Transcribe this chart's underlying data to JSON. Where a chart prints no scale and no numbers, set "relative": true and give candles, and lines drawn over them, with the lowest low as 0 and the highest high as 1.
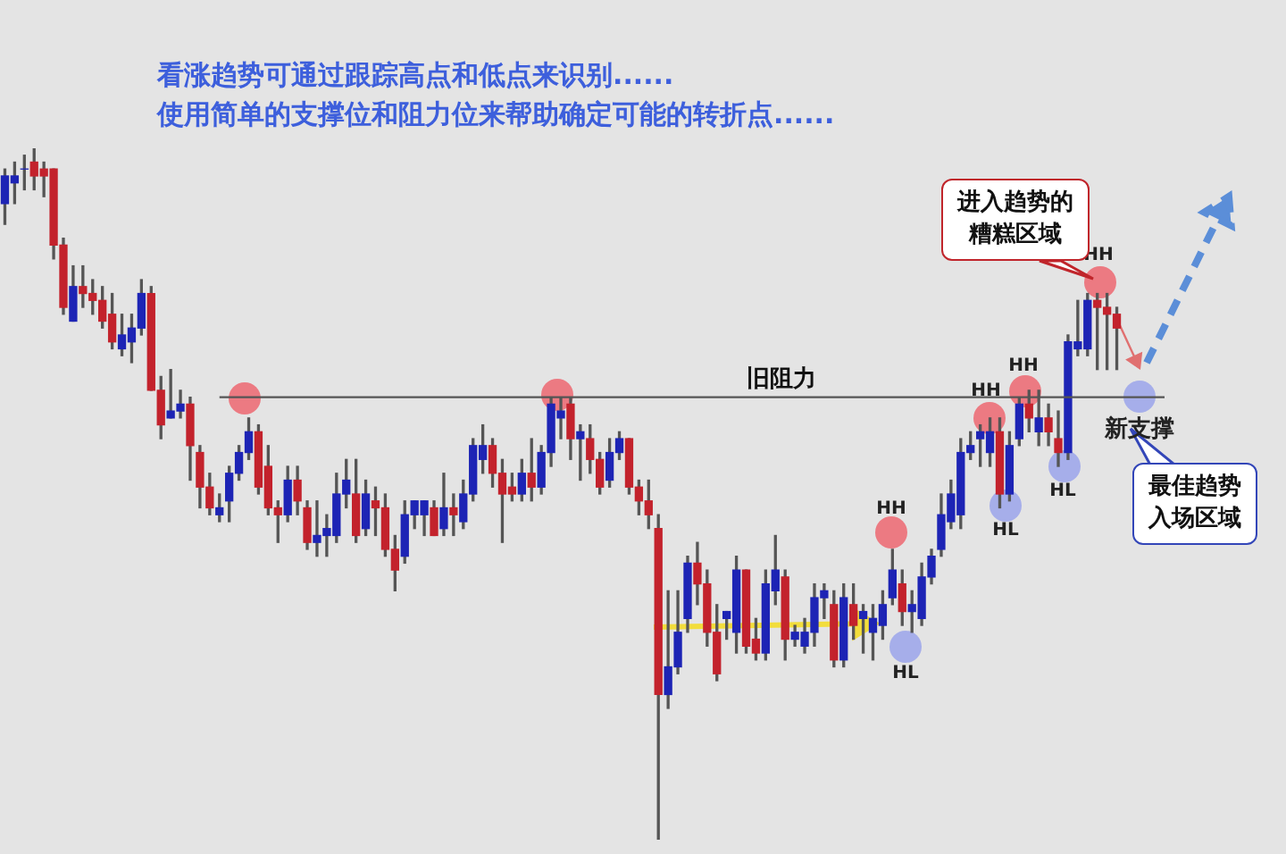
{
  "chart_data": {
    "type": "candlestick",
    "relative": true,
    "legend": false,
    "title": "看涨趋势可通过跟踪高点和低点来识别......",
    "subtitle": "使用简单的支撑位和阻力位来帮助确定可能的转折点......",
    "ref_lines": [
      {
        "axis": "y",
        "value": 0.64,
        "label": "旧阻力",
        "color": "#555555"
      }
    ],
    "annotations": [
      "HH",
      "HL",
      "HH",
      "HL",
      "HH",
      "HL",
      "HH",
      "新支撑",
      "进入趋势的糟糕区域",
      "最佳趋势入场区域"
    ],
    "ohlc": [
      [
        0.92,
        0.97,
        0.89,
        0.96
      ],
      [
        0.95,
        0.98,
        0.92,
        0.96
      ],
      [
        0.97,
        0.99,
        0.94,
        0.97
      ],
      [
        0.98,
        1.0,
        0.94,
        0.96
      ],
      [
        0.97,
        0.98,
        0.93,
        0.96
      ],
      [
        0.97,
        0.97,
        0.84,
        0.86
      ],
      [
        0.86,
        0.87,
        0.76,
        0.77
      ],
      [
        0.75,
        0.83,
        0.75,
        0.8
      ],
      [
        0.8,
        0.83,
        0.77,
        0.79
      ],
      [
        0.79,
        0.81,
        0.76,
        0.78
      ],
      [
        0.78,
        0.8,
        0.74,
        0.75
      ],
      [
        0.76,
        0.79,
        0.71,
        0.72
      ],
      [
        0.71,
        0.76,
        0.7,
        0.73
      ],
      [
        0.72,
        0.76,
        0.69,
        0.74
      ],
      [
        0.74,
        0.81,
        0.73,
        0.79
      ],
      [
        0.79,
        0.8,
        0.65,
        0.65
      ],
      [
        0.65,
        0.67,
        0.58,
        0.6
      ],
      [
        0.61,
        0.68,
        0.61,
        0.62
      ],
      [
        0.62,
        0.65,
        0.61,
        0.63
      ],
      [
        0.63,
        0.64,
        0.52,
        0.57
      ],
      [
        0.56,
        0.57,
        0.48,
        0.51
      ],
      [
        0.51,
        0.53,
        0.47,
        0.48
      ],
      [
        0.47,
        0.5,
        0.46,
        0.48
      ],
      [
        0.49,
        0.54,
        0.46,
        0.53
      ],
      [
        0.53,
        0.57,
        0.52,
        0.56
      ],
      [
        0.56,
        0.61,
        0.55,
        0.59
      ],
      [
        0.59,
        0.6,
        0.5,
        0.51
      ],
      [
        0.54,
        0.57,
        0.47,
        0.48
      ],
      [
        0.48,
        0.49,
        0.43,
        0.47
      ],
      [
        0.47,
        0.54,
        0.46,
        0.52
      ],
      [
        0.52,
        0.54,
        0.47,
        0.49
      ],
      [
        0.48,
        0.49,
        0.42,
        0.43
      ],
      [
        0.43,
        0.49,
        0.41,
        0.44
      ],
      [
        0.44,
        0.47,
        0.41,
        0.45
      ],
      [
        0.44,
        0.53,
        0.43,
        0.5
      ],
      [
        0.5,
        0.55,
        0.48,
        0.52
      ],
      [
        0.5,
        0.55,
        0.43,
        0.44
      ],
      [
        0.45,
        0.52,
        0.44,
        0.5
      ],
      [
        0.49,
        0.51,
        0.44,
        0.48
      ],
      [
        0.48,
        0.5,
        0.41,
        0.42
      ],
      [
        0.42,
        0.44,
        0.36,
        0.39
      ],
      [
        0.41,
        0.49,
        0.4,
        0.47
      ],
      [
        0.47,
        0.49,
        0.45,
        0.49
      ],
      [
        0.47,
        0.49,
        0.44,
        0.49
      ],
      [
        0.48,
        0.49,
        0.44,
        0.44
      ],
      [
        0.45,
        0.53,
        0.44,
        0.48
      ],
      [
        0.48,
        0.5,
        0.44,
        0.47
      ],
      [
        0.46,
        0.52,
        0.45,
        0.5
      ],
      [
        0.5,
        0.58,
        0.49,
        0.57
      ],
      [
        0.55,
        0.6,
        0.53,
        0.57
      ],
      [
        0.57,
        0.58,
        0.51,
        0.53
      ],
      [
        0.53,
        0.55,
        0.43,
        0.5
      ],
      [
        0.51,
        0.53,
        0.49,
        0.5
      ],
      [
        0.5,
        0.55,
        0.49,
        0.53
      ],
      [
        0.53,
        0.58,
        0.49,
        0.51
      ],
      [
        0.51,
        0.57,
        0.5,
        0.56
      ],
      [
        0.56,
        0.64,
        0.54,
        0.63
      ],
      [
        0.61,
        0.64,
        0.58,
        0.62
      ],
      [
        0.63,
        0.64,
        0.55,
        0.58
      ],
      [
        0.58,
        0.6,
        0.52,
        0.59
      ],
      [
        0.58,
        0.6,
        0.53,
        0.55
      ],
      [
        0.55,
        0.56,
        0.5,
        0.51
      ],
      [
        0.52,
        0.58,
        0.51,
        0.56
      ],
      [
        0.56,
        0.59,
        0.55,
        0.58
      ],
      [
        0.58,
        0.58,
        0.5,
        0.51
      ],
      [
        0.51,
        0.52,
        0.47,
        0.49
      ],
      [
        0.49,
        0.52,
        0.45,
        0.47
      ],
      [
        0.45,
        0.47,
        0,
        0.21
      ],
      [
        0.21,
        0.36,
        0.19,
        0.25
      ],
      [
        0.25,
        0.36,
        0.24,
        0.3
      ],
      [
        0.32,
        0.41,
        0.3,
        0.4
      ],
      [
        0.4,
        0.43,
        0.34,
        0.37
      ],
      [
        0.37,
        0.39,
        0.28,
        0.3
      ],
      [
        0.3,
        0.34,
        0.23,
        0.24
      ],
      [
        0.32,
        0.33,
        0.29,
        0.33
      ],
      [
        0.3,
        0.41,
        0.27,
        0.39
      ],
      [
        0.39,
        0.39,
        0.27,
        0.28
      ],
      [
        0.29,
        0.32,
        0.26,
        0.27
      ],
      [
        0.27,
        0.39,
        0.26,
        0.37
      ],
      [
        0.36,
        0.44,
        0.34,
        0.39
      ],
      [
        0.38,
        0.39,
        0.26,
        0.29
      ],
      [
        0.29,
        0.31,
        0.28,
        0.3
      ],
      [
        0.28,
        0.32,
        0.27,
        0.3
      ],
      [
        0.3,
        0.37,
        0.28,
        0.35
      ],
      [
        0.35,
        0.37,
        0.32,
        0.36
      ],
      [
        0.34,
        0.36,
        0.25,
        0.26
      ],
      [
        0.26,
        0.37,
        0.25,
        0.35
      ],
      [
        0.34,
        0.37,
        0.29,
        0.31
      ],
      [
        0.32,
        0.34,
        0.27,
        0.33
      ],
      [
        0.3,
        0.34,
        0.26,
        0.32
      ],
      [
        0.31,
        0.36,
        0.29,
        0.34
      ],
      [
        0.35,
        0.42,
        0.34,
        0.39
      ],
      [
        0.37,
        0.39,
        0.31,
        0.33
      ],
      [
        0.33,
        0.36,
        0.3,
        0.34
      ],
      [
        0.32,
        0.4,
        0.31,
        0.38
      ],
      [
        0.38,
        0.42,
        0.37,
        0.41
      ],
      [
        0.42,
        0.5,
        0.41,
        0.47
      ],
      [
        0.46,
        0.52,
        0.45,
        0.5
      ],
      [
        0.47,
        0.58,
        0.45,
        0.56
      ],
      [
        0.56,
        0.59,
        0.55,
        0.57
      ],
      [
        0.58,
        0.6,
        0.54,
        0.59
      ],
      [
        0.56,
        0.61,
        0.54,
        0.59
      ],
      [
        0.59,
        0.61,
        0.48,
        0.5
      ],
      [
        0.5,
        0.59,
        0.49,
        0.57
      ],
      [
        0.58,
        0.64,
        0.57,
        0.63
      ],
      [
        0.63,
        0.65,
        0.59,
        0.61
      ],
      [
        0.59,
        0.65,
        0.57,
        0.61
      ],
      [
        0.61,
        0.63,
        0.57,
        0.59
      ],
      [
        0.58,
        0.62,
        0.54,
        0.56
      ],
      [
        0.56,
        0.73,
        0.55,
        0.72
      ],
      [
        0.71,
        0.78,
        0.7,
        0.72
      ],
      [
        0.71,
        0.79,
        0.7,
        0.78
      ],
      [
        0.78,
        0.79,
        0.68,
        0.77
      ],
      [
        0.77,
        0.79,
        0.68,
        0.76
      ],
      [
        0.76,
        0.77,
        0.68,
        0.74
      ]
    ]
  }
}
